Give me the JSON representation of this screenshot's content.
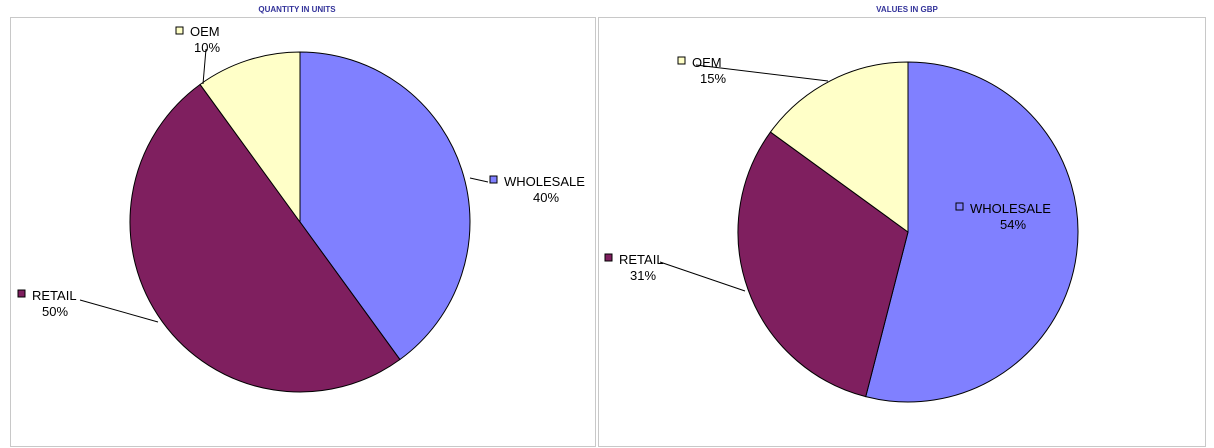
{
  "charts": {
    "left": {
      "title": "QUANTITY IN UNITS"
    },
    "right": {
      "title": "VALUES IN GBP"
    }
  },
  "chart_data": [
    {
      "type": "pie",
      "title": "QUANTITY IN UNITS",
      "slices": [
        {
          "label": "WHOLESALE",
          "value": 40,
          "pct_text": "40%",
          "color": "#8080ff"
        },
        {
          "label": "RETAIL",
          "value": 50,
          "pct_text": "50%",
          "color": "#7f1f5f"
        },
        {
          "label": "OEM",
          "value": 10,
          "pct_text": "10%",
          "color": "#ffffc8"
        }
      ],
      "legend": "none",
      "start_angle": "12 o'clock, clockwise"
    },
    {
      "type": "pie",
      "title": "VALUES IN GBP",
      "slices": [
        {
          "label": "WHOLESALE",
          "value": 54,
          "pct_text": "54%",
          "color": "#8080ff"
        },
        {
          "label": "RETAIL",
          "value": 31,
          "pct_text": "31%",
          "color": "#7f1f5f"
        },
        {
          "label": "OEM",
          "value": 15,
          "pct_text": "15%",
          "color": "#ffffc8"
        }
      ],
      "legend": "none",
      "start_angle": "12 o'clock, clockwise"
    }
  ]
}
